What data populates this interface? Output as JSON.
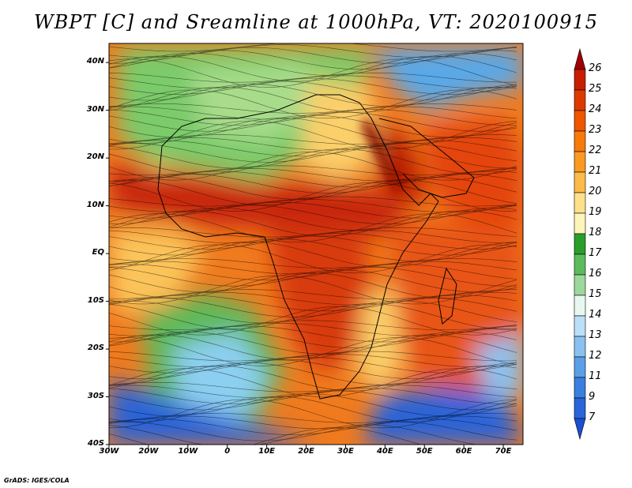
{
  "title": "WBPT [C] and Sreamline at 1000hPa, VT: 2020100915",
  "credit": "GrADS: IGES/COLA",
  "map": {
    "lat_labels": [
      "40N",
      "30N",
      "20N",
      "10N",
      "EQ",
      "10S",
      "20S",
      "30S",
      "40S"
    ],
    "lat_values": [
      40,
      30,
      20,
      10,
      0,
      -10,
      -20,
      -30,
      -40
    ],
    "lon_labels": [
      "30W",
      "20W",
      "10W",
      "0",
      "10E",
      "20E",
      "30E",
      "40E",
      "50E",
      "60E",
      "70E"
    ],
    "lon_values": [
      -30,
      -20,
      -10,
      0,
      10,
      20,
      30,
      40,
      50,
      60,
      70
    ],
    "lat_range": [
      -40,
      44
    ],
    "lon_range": [
      -30,
      75
    ]
  },
  "colorbar": {
    "labels": [
      "26",
      "25",
      "24",
      "23",
      "22",
      "21",
      "20",
      "19",
      "18",
      "17",
      "16",
      "15",
      "14",
      "13",
      "12",
      "11",
      "9",
      "7"
    ],
    "colors": [
      "#a00000",
      "#c81e00",
      "#de3a00",
      "#f05500",
      "#f87a0a",
      "#fa9a20",
      "#fbbb4a",
      "#fde08a",
      "#fdf4b8",
      "#2a9e2a",
      "#5dbb5d",
      "#9cd89c",
      "#e8f8f0",
      "#bcdff8",
      "#8ac1f0",
      "#5a9fe8",
      "#3a7fe0",
      "#2a64d8",
      "#1a4fd0"
    ]
  }
}
